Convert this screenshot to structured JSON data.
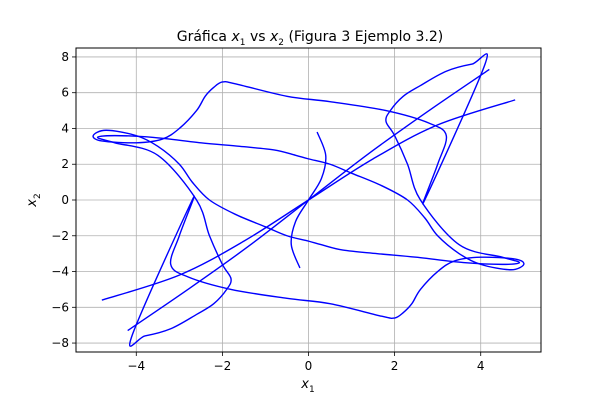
{
  "chart_data": {
    "type": "line",
    "title_parts": {
      "prefix": "Gráfica ",
      "var1": "x",
      "sub1": "1",
      "mid": " vs ",
      "var2": "x",
      "sub2": "2",
      "suffix": " (Figura 3 Ejemplo 3.2)"
    },
    "xlabel": {
      "var": "x",
      "sub": "1"
    },
    "ylabel": {
      "var": "x",
      "sub": "2"
    },
    "xlim": [
      -5.4,
      5.4
    ],
    "ylim": [
      -8.5,
      8.5
    ],
    "xticks": [
      -4,
      -2,
      0,
      2,
      4
    ],
    "yticks": [
      -8,
      -6,
      -4,
      -2,
      0,
      2,
      4,
      6,
      8
    ],
    "xtick_labels": [
      "−4",
      "−2",
      "0",
      "2",
      "4"
    ],
    "ytick_labels": [
      "−8",
      "−6",
      "−4",
      "−2",
      "0",
      "2",
      "4",
      "6",
      "8"
    ],
    "grid": true,
    "series": [
      {
        "color": "#0000ff",
        "closed": true,
        "x": [
          -4.1,
          -3.8,
          -3.2,
          -2.6,
          -2.2,
          -1.9,
          -1.8,
          -2.0,
          -2.3,
          -2.6,
          -3.5,
          -4.5,
          -4.9,
          -4.5,
          -3.6,
          -2.5,
          -1.6,
          -0.8,
          -0.3,
          0.0,
          0.5,
          1.0,
          1.7,
          2.3,
          2.7,
          3.0,
          3.5,
          4.0,
          4.7,
          5.0,
          4.8,
          4.0,
          3.4,
          3.0,
          2.6,
          2.4,
          2.2,
          2.0,
          1.7,
          0.5,
          -0.5,
          -1.8,
          -2.8,
          -3.2,
          -3.0,
          -2.7
        ],
        "y": [
          -7.6,
          -7.6,
          -7.2,
          -6.4,
          -5.8,
          -5.0,
          -4.4,
          -3.6,
          -2.0,
          0.0,
          2.5,
          3.2,
          3.5,
          3.6,
          3.5,
          3.2,
          3.0,
          2.8,
          2.5,
          2.3,
          2.0,
          1.5,
          0.8,
          0.0,
          -1.0,
          -2.0,
          -3.0,
          -3.6,
          -3.9,
          -3.6,
          -3.3,
          -3.2,
          -3.4,
          -4.0,
          -5.0,
          -5.8,
          -6.3,
          -6.6,
          -6.5,
          -5.8,
          -5.5,
          -5.0,
          -4.3,
          -3.6,
          -2.0,
          0.0
        ]
      },
      {
        "color": "#0000ff",
        "closed": true,
        "x": [
          4.1,
          3.8,
          3.2,
          2.6,
          2.2,
          1.9,
          1.8,
          2.0,
          2.3,
          2.6,
          3.5,
          4.5,
          4.9,
          4.5,
          3.6,
          2.5,
          1.6,
          0.8,
          0.3,
          0.0,
          -0.5,
          -1.0,
          -1.7,
          -2.3,
          -2.7,
          -3.0,
          -3.5,
          -4.0,
          -4.7,
          -5.0,
          -4.8,
          -4.0,
          -3.4,
          -3.0,
          -2.6,
          -2.4,
          -2.2,
          -2.0,
          -1.7,
          -0.5,
          0.5,
          1.8,
          2.8,
          3.2,
          3.0,
          2.7
        ],
        "y": [
          7.6,
          7.6,
          7.2,
          6.4,
          5.8,
          5.0,
          4.4,
          3.6,
          2.0,
          0.0,
          -2.5,
          -3.2,
          -3.5,
          -3.6,
          -3.5,
          -3.2,
          -3.0,
          -2.8,
          -2.5,
          -2.3,
          -2.0,
          -1.5,
          -0.8,
          0.0,
          1.0,
          2.0,
          3.0,
          3.6,
          3.9,
          3.6,
          3.3,
          3.2,
          3.4,
          4.0,
          5.0,
          5.8,
          6.3,
          6.6,
          6.5,
          5.8,
          5.5,
          5.0,
          4.3,
          3.6,
          2.0,
          0.0
        ]
      },
      {
        "color": "#0000ff",
        "closed": false,
        "x": [
          -4.2,
          -2.8,
          -1.4,
          0.0,
          1.4,
          2.8,
          4.2
        ],
        "y": [
          -7.3,
          -5.0,
          -2.6,
          0.0,
          2.6,
          5.0,
          7.3
        ]
      },
      {
        "color": "#0000ff",
        "closed": false,
        "x": [
          -4.8,
          -3.0,
          -1.5,
          0.0,
          1.5,
          3.0,
          4.8
        ],
        "y": [
          -5.6,
          -4.2,
          -2.3,
          0.0,
          2.3,
          4.2,
          5.6
        ]
      },
      {
        "color": "#0000ff",
        "closed": false,
        "x": [
          -0.2,
          -0.4,
          -0.3,
          0.0,
          0.3,
          0.4,
          0.2
        ],
        "y": [
          -3.8,
          -2.5,
          -1.2,
          0.0,
          1.2,
          2.5,
          3.8
        ]
      }
    ]
  }
}
